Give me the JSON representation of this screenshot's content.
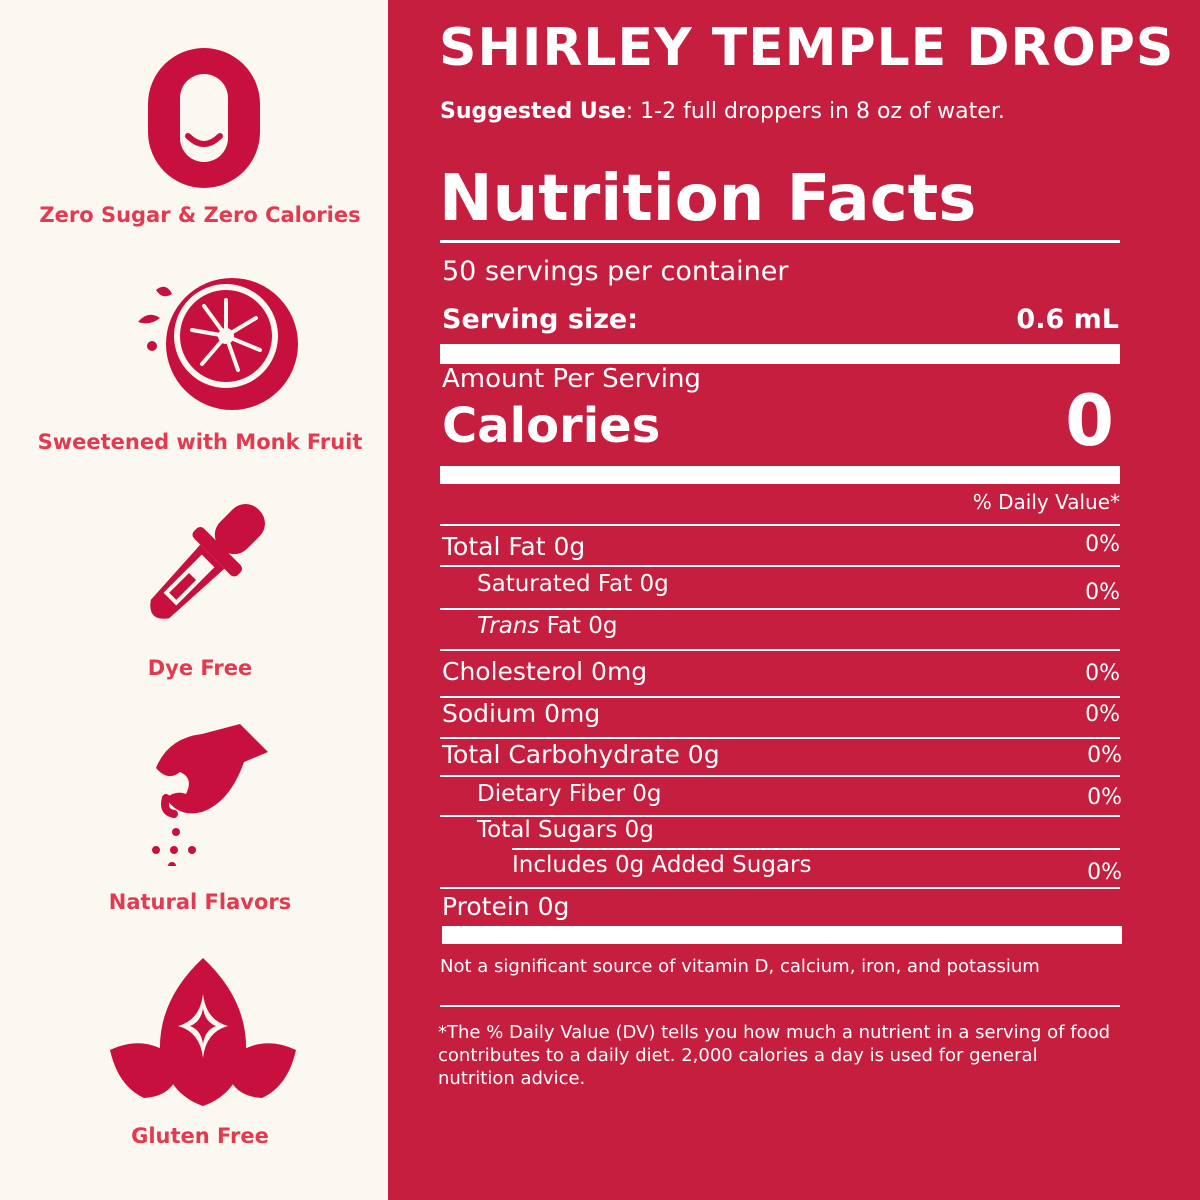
{
  "features": [
    {
      "icon": "zero-smile-icon",
      "label": "Zero Sugar & Zero Calories"
    },
    {
      "icon": "monk-fruit-icon",
      "label": "Sweetened with Monk Fruit"
    },
    {
      "icon": "dropper-icon",
      "label": "Dye Free"
    },
    {
      "icon": "pinch-flavor-icon",
      "label": "Natural Flavors"
    },
    {
      "icon": "wheat-free-leaf-icon",
      "label": "Gluten Free"
    }
  ],
  "product": {
    "title": "SHIRLEY TEMPLE DROPS",
    "suggested_label": "Suggested Use",
    "suggested_text": ": 1-2 full droppers in 8 oz of water."
  },
  "nutrition": {
    "heading": "Nutrition Facts",
    "servings": "50 servings per container",
    "serving_size_label": "Serving size:",
    "serving_size_value": "0.6 mL",
    "amount_per_serving": "Amount Per Serving",
    "calories_label": "Calories",
    "calories_value": "0",
    "dv_header": "% Daily Value*",
    "rows": [
      {
        "label": "Total Fat 0g",
        "dv": "0%"
      },
      {
        "label": "Saturated Fat 0g",
        "dv": "0%"
      },
      {
        "label_italic": "Trans",
        "label_rest": " Fat 0g",
        "dv": ""
      },
      {
        "label": "Cholesterol 0mg",
        "dv": "0%"
      },
      {
        "label": "Sodium 0mg",
        "dv": "0%"
      },
      {
        "label": "Total Carbohydrate 0g",
        "dv": "0%"
      },
      {
        "label": "Dietary Fiber 0g",
        "dv": "0%"
      },
      {
        "label": "Total Sugars 0g",
        "dv": ""
      },
      {
        "label": "Includes 0g Added Sugars",
        "dv": "0%"
      },
      {
        "label": "Protein 0g",
        "dv": ""
      }
    ],
    "not_significant": "Not a significant source of vitamin D, calcium, iron, and potassium",
    "footnote": "*The % Daily Value (DV) tells you how much a nutrient in a serving of food contributes to a daily diet. 2,000 calories a day is used for general nutrition advice."
  },
  "colors": {
    "accent": "#c51e3e",
    "label": "#e33a4f",
    "background": "#fbf7f1"
  }
}
